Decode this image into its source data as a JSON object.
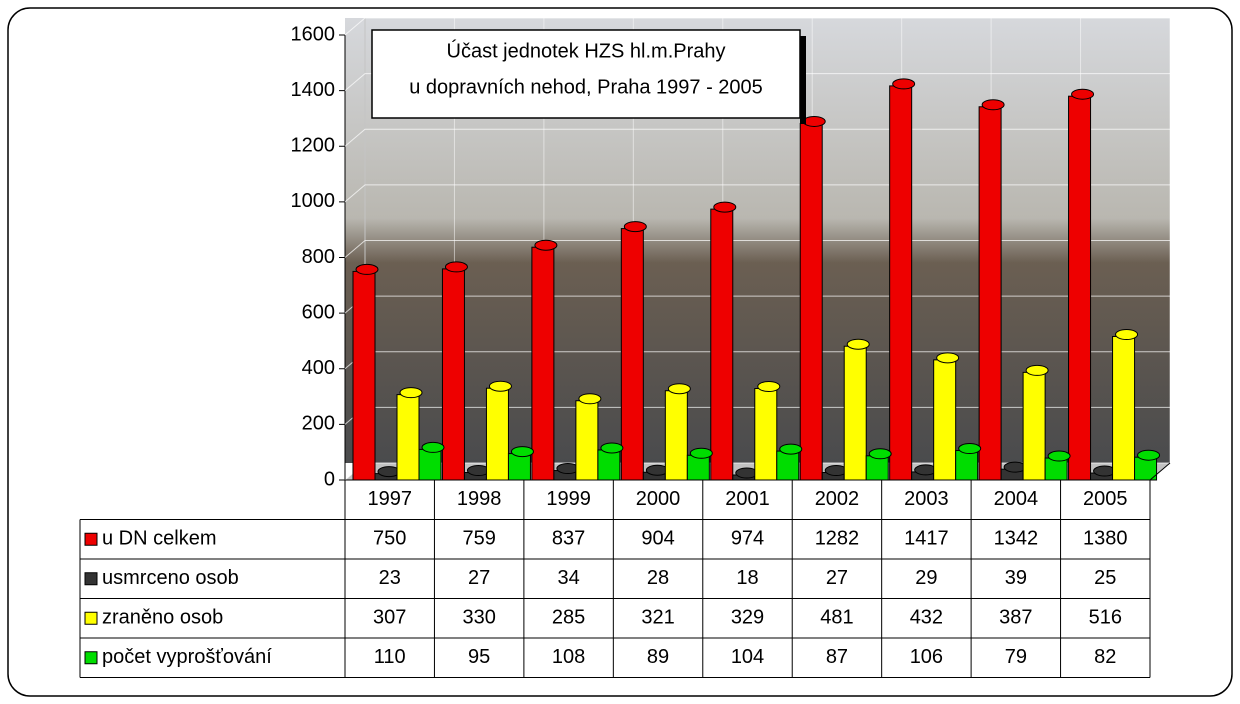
{
  "chart_data": {
    "type": "bar",
    "title": [
      "Účast jednotek HZS hl.m.Prahy",
      "u dopravních nehod, Praha 1997 - 2005"
    ],
    "categories": [
      "1997",
      "1998",
      "1999",
      "2000",
      "2001",
      "2002",
      "2003",
      "2004",
      "2005"
    ],
    "series": [
      {
        "name": "u DN celkem",
        "color": "#ee0000",
        "values": [
          750,
          759,
          837,
          904,
          974,
          1282,
          1417,
          1342,
          1380
        ]
      },
      {
        "name": "usmrceno osob",
        "color": "#333333",
        "values": [
          23,
          27,
          34,
          28,
          18,
          27,
          29,
          39,
          25
        ]
      },
      {
        "name": "zraněno osob",
        "color": "#ffff00",
        "values": [
          307,
          330,
          285,
          321,
          329,
          481,
          432,
          387,
          516
        ]
      },
      {
        "name": "počet vyprošťování",
        "color": "#00dd00",
        "values": [
          110,
          95,
          108,
          89,
          104,
          87,
          106,
          79,
          82
        ]
      }
    ],
    "ylim": [
      0,
      1600
    ],
    "yticks": [
      0,
      200,
      400,
      600,
      800,
      1000,
      1200,
      1400,
      1600
    ],
    "grid": true
  }
}
